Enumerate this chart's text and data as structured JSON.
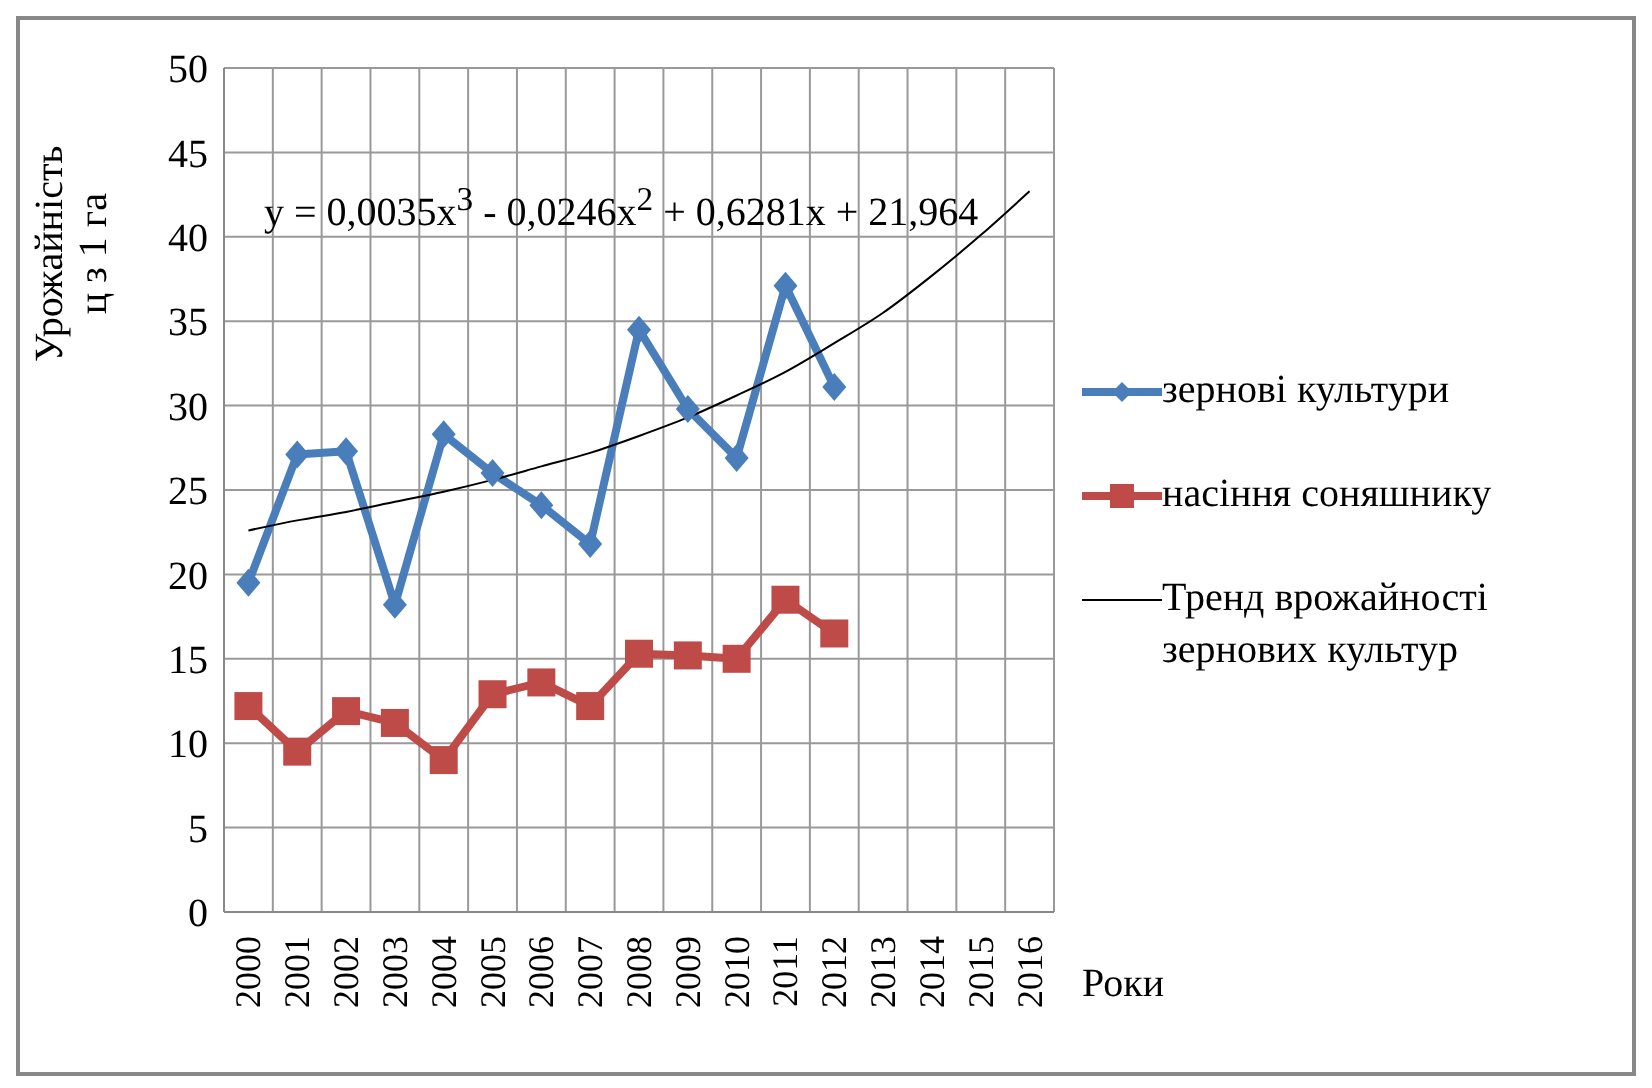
{
  "chart_data": {
    "type": "line",
    "ylabel": "Урожайність\nц з 1 га",
    "xlabel": "Роки",
    "categories": [
      "2000",
      "2001",
      "2002",
      "2003",
      "2004",
      "2005",
      "2006",
      "2007",
      "2008",
      "2009",
      "2010",
      "2011",
      "2012",
      "2013",
      "2014",
      "2015",
      "2016"
    ],
    "series": [
      {
        "name": "зернові культури",
        "color": "#4a7ebb",
        "marker": "diamond",
        "values": [
          19.5,
          27.1,
          27.3,
          18.2,
          28.3,
          26.0,
          24.1,
          21.8,
          34.5,
          29.8,
          26.9,
          37.1,
          31.1,
          null,
          null,
          null,
          null
        ]
      },
      {
        "name": "насіння соняшнику",
        "color": "#be4b48",
        "marker": "square",
        "values": [
          12.2,
          9.5,
          11.9,
          11.2,
          9.0,
          12.9,
          13.6,
          12.2,
          15.3,
          15.2,
          15.0,
          18.5,
          16.5,
          null,
          null,
          null,
          null
        ]
      },
      {
        "name": "Тренд врожайності зернових культур",
        "color": "#000000",
        "marker": "none",
        "values": [
          22.6,
          23.2,
          23.7,
          24.3,
          24.9,
          25.6,
          26.4,
          27.2,
          28.2,
          29.3,
          30.6,
          32.0,
          33.7,
          35.5,
          37.7,
          40.1,
          42.7
        ]
      }
    ],
    "ylim": [
      0,
      50
    ],
    "yticks": [
      0,
      5,
      10,
      15,
      20,
      25,
      30,
      35,
      40,
      45,
      50
    ],
    "grid": true,
    "legend": "right",
    "annotations": [
      "y = 0,0035x$^{3}$ - 0,0246x$^{2}$ + 0,6281x + 21,964"
    ]
  }
}
